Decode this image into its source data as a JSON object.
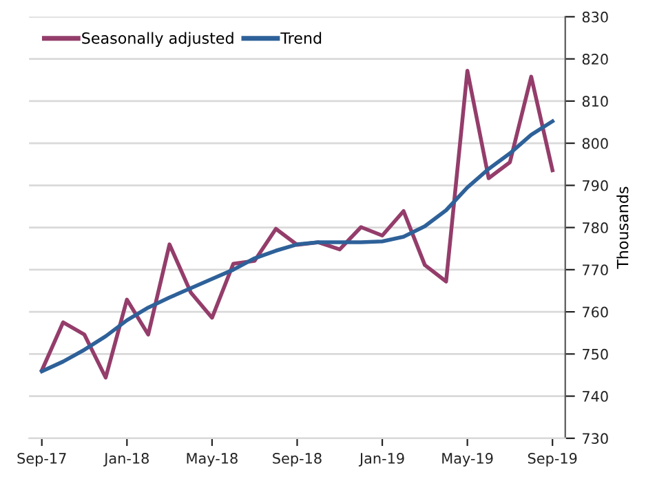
{
  "chart_data": {
    "type": "line",
    "ylabel": "Thousands",
    "categories": [
      "Sep-17",
      null,
      null,
      null,
      "Jan-18",
      null,
      null,
      null,
      "May-18",
      null,
      null,
      null,
      "Sep-18",
      null,
      null,
      null,
      "Jan-19",
      null,
      null,
      null,
      "May-19",
      null,
      null,
      null,
      "Sep-19"
    ],
    "series": [
      {
        "name": "Seasonally adjusted",
        "color": "#943d6b",
        "values": [
          746.1,
          757.5,
          754.6,
          744.4,
          762.9,
          754.6,
          776.0,
          764.6,
          758.6,
          771.4,
          772.1,
          779.7,
          775.9,
          776.5,
          774.8,
          780.1,
          778.1,
          783.9,
          771.1,
          767.2,
          817.2,
          791.7,
          795.5,
          815.8,
          793.6
        ]
      },
      {
        "name": "Trend",
        "color": "#2e6199",
        "values": [
          745.9,
          748.2,
          751.0,
          754.2,
          758.0,
          761.0,
          763.4,
          765.6,
          767.8,
          770.0,
          772.7,
          774.5,
          776.0,
          776.5,
          776.5,
          776.5,
          776.7,
          777.8,
          780.3,
          784.1,
          789.5,
          793.9,
          797.6,
          802.0,
          805.2
        ]
      }
    ],
    "ylim": [
      730,
      830
    ],
    "yticks": [
      730,
      740,
      750,
      760,
      770,
      780,
      790,
      800,
      810,
      820,
      830
    ],
    "grid": "y",
    "legend": "top left",
    "marker": "none",
    "line_style": "solid"
  }
}
